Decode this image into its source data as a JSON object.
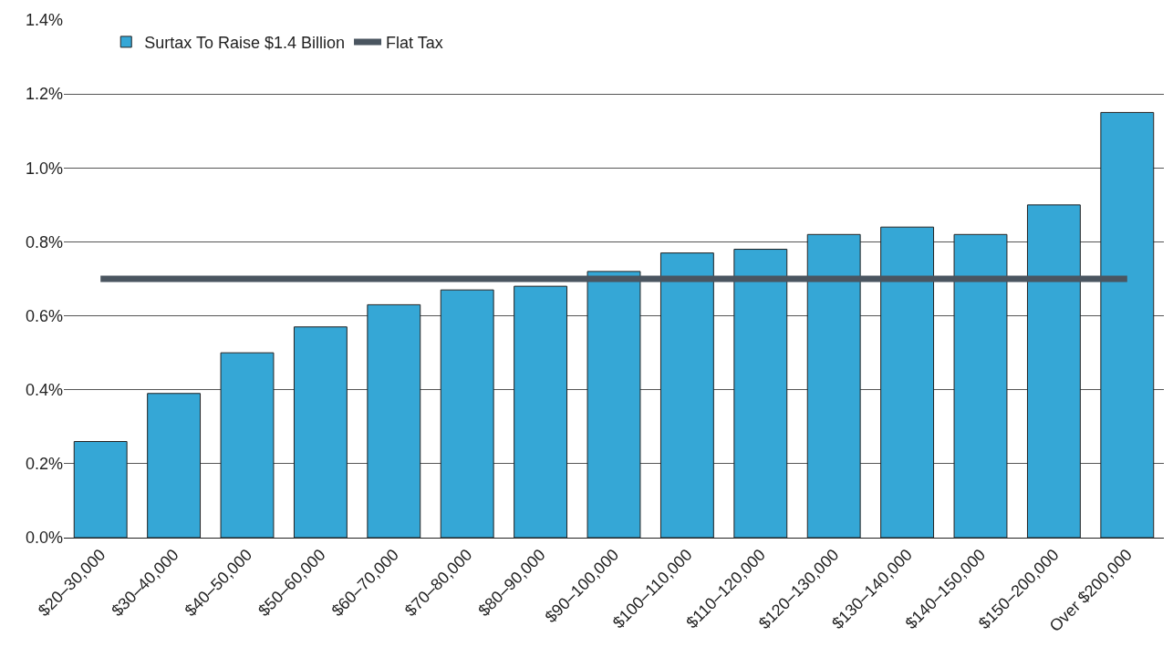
{
  "chart_data": {
    "type": "bar",
    "categories": [
      "$20–30,000",
      "$30–40,000",
      "$40–50,000",
      "$50–60,000",
      "$60–70,000",
      "$70–80,000",
      "$80–90,000",
      "$90–100,000",
      "$100–110,000",
      "$110–120,000",
      "$120–130,000",
      "$130–140,000",
      "$140–150,000",
      "$150–200,000",
      "Over $200,000"
    ],
    "series": [
      {
        "name": "Surtax To Raise $1.4 Billion",
        "color": "#35a7d6",
        "values": [
          0.26,
          0.39,
          0.5,
          0.57,
          0.63,
          0.67,
          0.68,
          0.72,
          0.77,
          0.78,
          0.82,
          0.84,
          0.82,
          0.9,
          1.15
        ]
      },
      {
        "name": "Flat Tax",
        "type": "line",
        "color": "#4a5560",
        "values": [
          0.7,
          0.7,
          0.7,
          0.7,
          0.7,
          0.7,
          0.7,
          0.7,
          0.7,
          0.7,
          0.7,
          0.7,
          0.7,
          0.7,
          0.7
        ]
      }
    ],
    "ylim": [
      0,
      1.4
    ],
    "yticks": [
      {
        "value": 0,
        "label": "0.0%"
      },
      {
        "value": 0.2,
        "label": "0.2%"
      },
      {
        "value": 0.4,
        "label": "0.4%"
      },
      {
        "value": 0.6,
        "label": "0.6%"
      },
      {
        "value": 0.8,
        "label": "0.8%"
      },
      {
        "value": 1.0,
        "label": "1.0%"
      },
      {
        "value": 1.2,
        "label": "1.2%"
      },
      {
        "value": 1.4,
        "label": "1.4%"
      }
    ],
    "grid": "y",
    "legend": "top left",
    "marker": "none",
    "line_style": "solid"
  }
}
